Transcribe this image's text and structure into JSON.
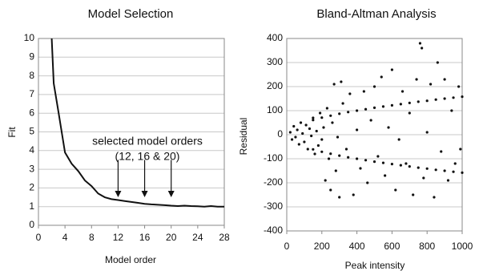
{
  "chart_data": [
    {
      "type": "line",
      "title": "Model Selection",
      "x_label": "Model order",
      "y_label": "Fit",
      "x": [
        2,
        2.3,
        3,
        4,
        5,
        6,
        7,
        8,
        9,
        10,
        11,
        12,
        13,
        14,
        15,
        16,
        17,
        18,
        19,
        20,
        21,
        22,
        23,
        24,
        25,
        26,
        27,
        28
      ],
      "values": [
        10,
        7.6,
        6.1,
        3.9,
        3.3,
        2.9,
        2.4,
        2.1,
        1.7,
        1.5,
        1.4,
        1.35,
        1.3,
        1.25,
        1.2,
        1.15,
        1.12,
        1.1,
        1.08,
        1.05,
        1.03,
        1.05,
        1.03,
        1.02,
        1.0,
        1.03,
        1.0,
        1.0
      ],
      "color": "#111111",
      "xlim": [
        0,
        28
      ],
      "xticks": [
        0,
        4,
        8,
        12,
        16,
        20,
        24,
        28
      ],
      "ylim": [
        0,
        10
      ],
      "yticks": [
        0,
        1,
        2,
        3,
        4,
        5,
        6,
        7,
        8,
        9,
        10
      ],
      "grid": true,
      "annotation": [
        "selected model orders",
        "(12, 16 & 20)"
      ],
      "arrows": [
        {
          "x": 12,
          "y": [
            3.5,
            1.5
          ]
        },
        {
          "x": 16,
          "y": [
            3.5,
            1.5
          ]
        },
        {
          "x": 20,
          "y": [
            3.5,
            1.5
          ]
        }
      ]
    },
    {
      "type": "scatter",
      "title": "Bland-Altman Analysis",
      "x_label": "Peak intensity",
      "y_label": "Residual",
      "x": [
        150,
        200,
        250,
        300,
        350,
        400,
        450,
        500,
        550,
        600,
        650,
        700,
        750,
        800,
        850,
        900,
        950,
        1000,
        150,
        200,
        250,
        300,
        350,
        400,
        450,
        500,
        550,
        600,
        650,
        700,
        750,
        800,
        850,
        900,
        950,
        1000,
        20,
        30,
        40,
        50,
        60,
        70,
        80,
        90,
        100,
        110,
        120,
        130,
        140,
        150,
        160,
        170,
        180,
        190,
        200,
        210,
        220,
        230,
        240,
        250,
        260,
        270,
        280,
        290,
        300,
        310,
        320,
        340,
        360,
        380,
        400,
        420,
        440,
        460,
        480,
        500,
        520,
        540,
        560,
        580,
        600,
        620,
        640,
        660,
        680,
        700,
        720,
        740,
        760,
        770,
        780,
        800,
        820,
        840,
        860,
        880,
        900,
        920,
        940,
        960,
        980,
        990
      ],
      "values": [
        61,
        71,
        79,
        87,
        94,
        100,
        106,
        112,
        117,
        122,
        127,
        132,
        137,
        141,
        146,
        150,
        154,
        158,
        -61,
        -71,
        -79,
        -87,
        -94,
        -100,
        -106,
        -112,
        -117,
        -122,
        -127,
        -132,
        -137,
        -141,
        -146,
        -150,
        -154,
        -158,
        10,
        -20,
        35,
        -10,
        20,
        -40,
        50,
        5,
        -30,
        40,
        -60,
        25,
        -5,
        70,
        -80,
        15,
        -45,
        90,
        -20,
        30,
        -190,
        110,
        -100,
        -230,
        50,
        210,
        -150,
        -10,
        -260,
        220,
        130,
        -60,
        170,
        -250,
        20,
        -140,
        180,
        -200,
        60,
        200,
        -90,
        240,
        -170,
        30,
        270,
        -230,
        -20,
        180,
        -120,
        90,
        -250,
        230,
        380,
        360,
        -180,
        10,
        210,
        -260,
        300,
        -70,
        230,
        -190,
        100,
        -120,
        200,
        -60
      ],
      "color": "#111111",
      "xlim": [
        0,
        1000
      ],
      "xticks": [
        0,
        200,
        400,
        600,
        800,
        1000
      ],
      "ylim": [
        -400,
        400
      ],
      "yticks": [
        -400,
        -300,
        -200,
        -100,
        0,
        100,
        200,
        300,
        400
      ],
      "grid": true
    }
  ]
}
